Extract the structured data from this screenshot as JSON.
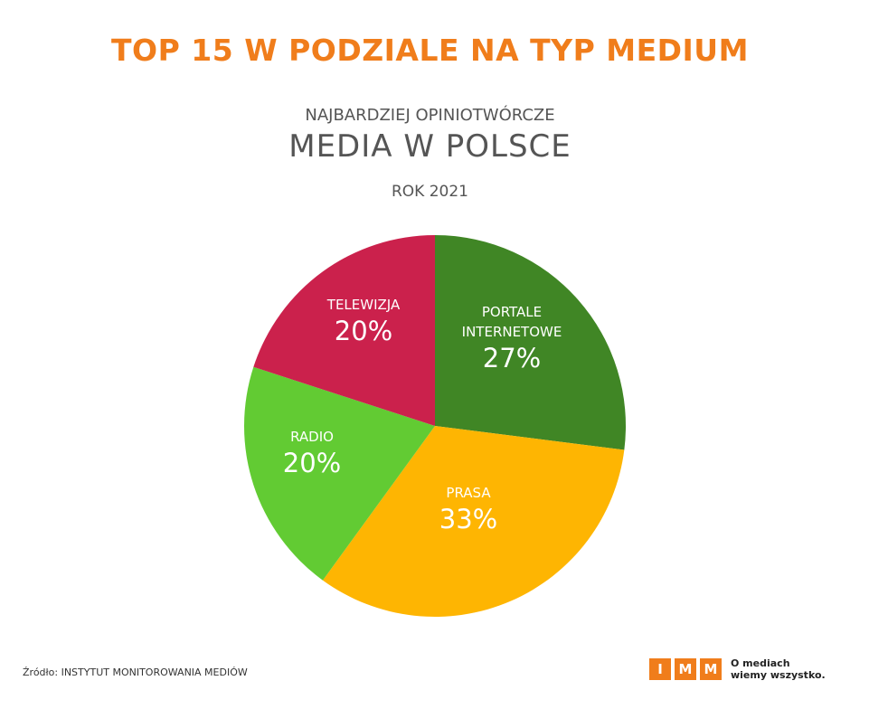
{
  "header": {
    "main_title": "TOP 15 W PODZIALE NA TYP MEDIUM",
    "subtitle": "NAJBARDZIEJ OPINIOTWÓRCZE",
    "title": "MEDIA W POLSCE",
    "year": "ROK 2021"
  },
  "chart_data": {
    "type": "pie",
    "title": "MEDIA W POLSCE",
    "start_angle_deg": 0,
    "direction": "clockwise",
    "slices": [
      {
        "label_lines": [
          "PORTALE",
          "INTERNETOWE"
        ],
        "value": 27,
        "value_label": "27%",
        "color": "#408625"
      },
      {
        "label_lines": [
          "PRASA"
        ],
        "value": 33,
        "value_label": "33%",
        "color": "#feb502"
      },
      {
        "label_lines": [
          "RADIO"
        ],
        "value": 20,
        "value_label": "20%",
        "color": "#62cb33"
      },
      {
        "label_lines": [
          "TELEWIZJA"
        ],
        "value": 20,
        "value_label": "20%",
        "color": "#cb214c"
      }
    ]
  },
  "footer": {
    "source": "Źródło: INSTYTUT MONITOROWANIA MEDIÓW",
    "logo_letters": [
      "I",
      "M",
      "M"
    ],
    "logo_tagline_1": "O mediach",
    "logo_tagline_2": "wiemy wszystko."
  },
  "colors": {
    "accent": "#f07d1b",
    "text": "#555555"
  }
}
